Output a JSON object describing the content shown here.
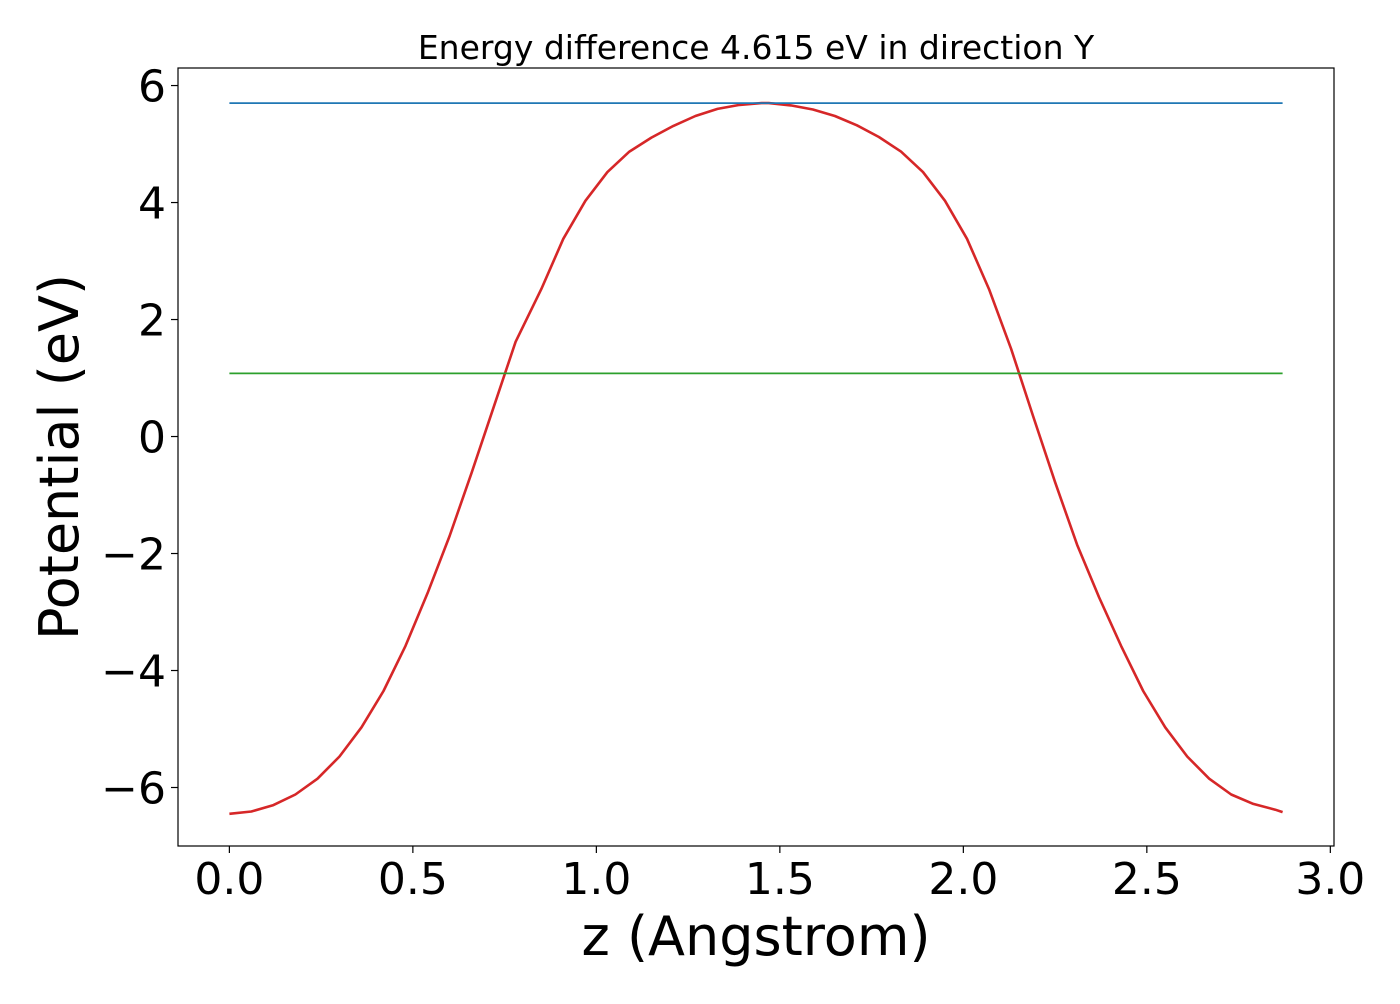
{
  "chart_data": {
    "type": "line",
    "title": "Energy difference 4.615 eV in direction Y",
    "xlabel": "z (Angstrom)",
    "ylabel": "Potential (eV)",
    "xlim": [
      -0.14,
      3.01
    ],
    "ylim": [
      -7.0,
      6.3
    ],
    "x_ticks": [
      {
        "value": 0.0,
        "label": "0.0"
      },
      {
        "value": 0.5,
        "label": "0.5"
      },
      {
        "value": 1.0,
        "label": "1.0"
      },
      {
        "value": 1.5,
        "label": "1.5"
      },
      {
        "value": 2.0,
        "label": "2.0"
      },
      {
        "value": 2.5,
        "label": "2.5"
      },
      {
        "value": 3.0,
        "label": "3.0"
      }
    ],
    "y_ticks": [
      {
        "value": 6,
        "label": "6"
      },
      {
        "value": 4,
        "label": "4"
      },
      {
        "value": 2,
        "label": "2"
      },
      {
        "value": 0,
        "label": "0"
      },
      {
        "value": -2,
        "label": "−2"
      },
      {
        "value": -4,
        "label": "−4"
      },
      {
        "value": -6,
        "label": "−6"
      }
    ],
    "grid": false,
    "legend": null,
    "series": [
      {
        "color": "#d62728",
        "x": [
          0.0,
          0.06,
          0.12,
          0.18,
          0.24,
          0.3,
          0.36,
          0.42,
          0.48,
          0.54,
          0.6,
          0.66,
          0.72,
          0.78,
          0.85,
          0.91,
          0.97,
          1.03,
          1.09,
          1.15,
          1.21,
          1.27,
          1.33,
          1.39,
          1.45,
          1.47,
          1.53,
          1.59,
          1.65,
          1.71,
          1.77,
          1.83,
          1.89,
          1.95,
          2.01,
          2.07,
          2.13,
          2.19,
          2.25,
          2.31,
          2.37,
          2.43,
          2.49,
          2.55,
          2.61,
          2.67,
          2.73,
          2.79,
          2.85,
          2.87
        ],
        "y": [
          -6.45,
          -6.41,
          -6.3,
          -6.12,
          -5.85,
          -5.47,
          -4.97,
          -4.35,
          -3.58,
          -2.68,
          -1.7,
          -0.62,
          0.5,
          1.62,
          2.52,
          3.38,
          4.03,
          4.52,
          4.87,
          5.11,
          5.31,
          5.48,
          5.6,
          5.67,
          5.7,
          5.7,
          5.66,
          5.59,
          5.48,
          5.32,
          5.12,
          4.87,
          4.52,
          4.03,
          3.38,
          2.52,
          1.5,
          0.35,
          -0.78,
          -1.85,
          -2.75,
          -3.58,
          -4.35,
          -4.97,
          -5.47,
          -5.85,
          -6.12,
          -6.28,
          -6.38,
          -6.42
        ]
      },
      {
        "color": "#1f77b4",
        "x": [
          0.0,
          2.87
        ],
        "y": [
          5.7,
          5.7
        ]
      },
      {
        "color": "#2ca02c",
        "x": [
          0.0,
          2.87
        ],
        "y": [
          1.08,
          1.08
        ]
      }
    ]
  }
}
